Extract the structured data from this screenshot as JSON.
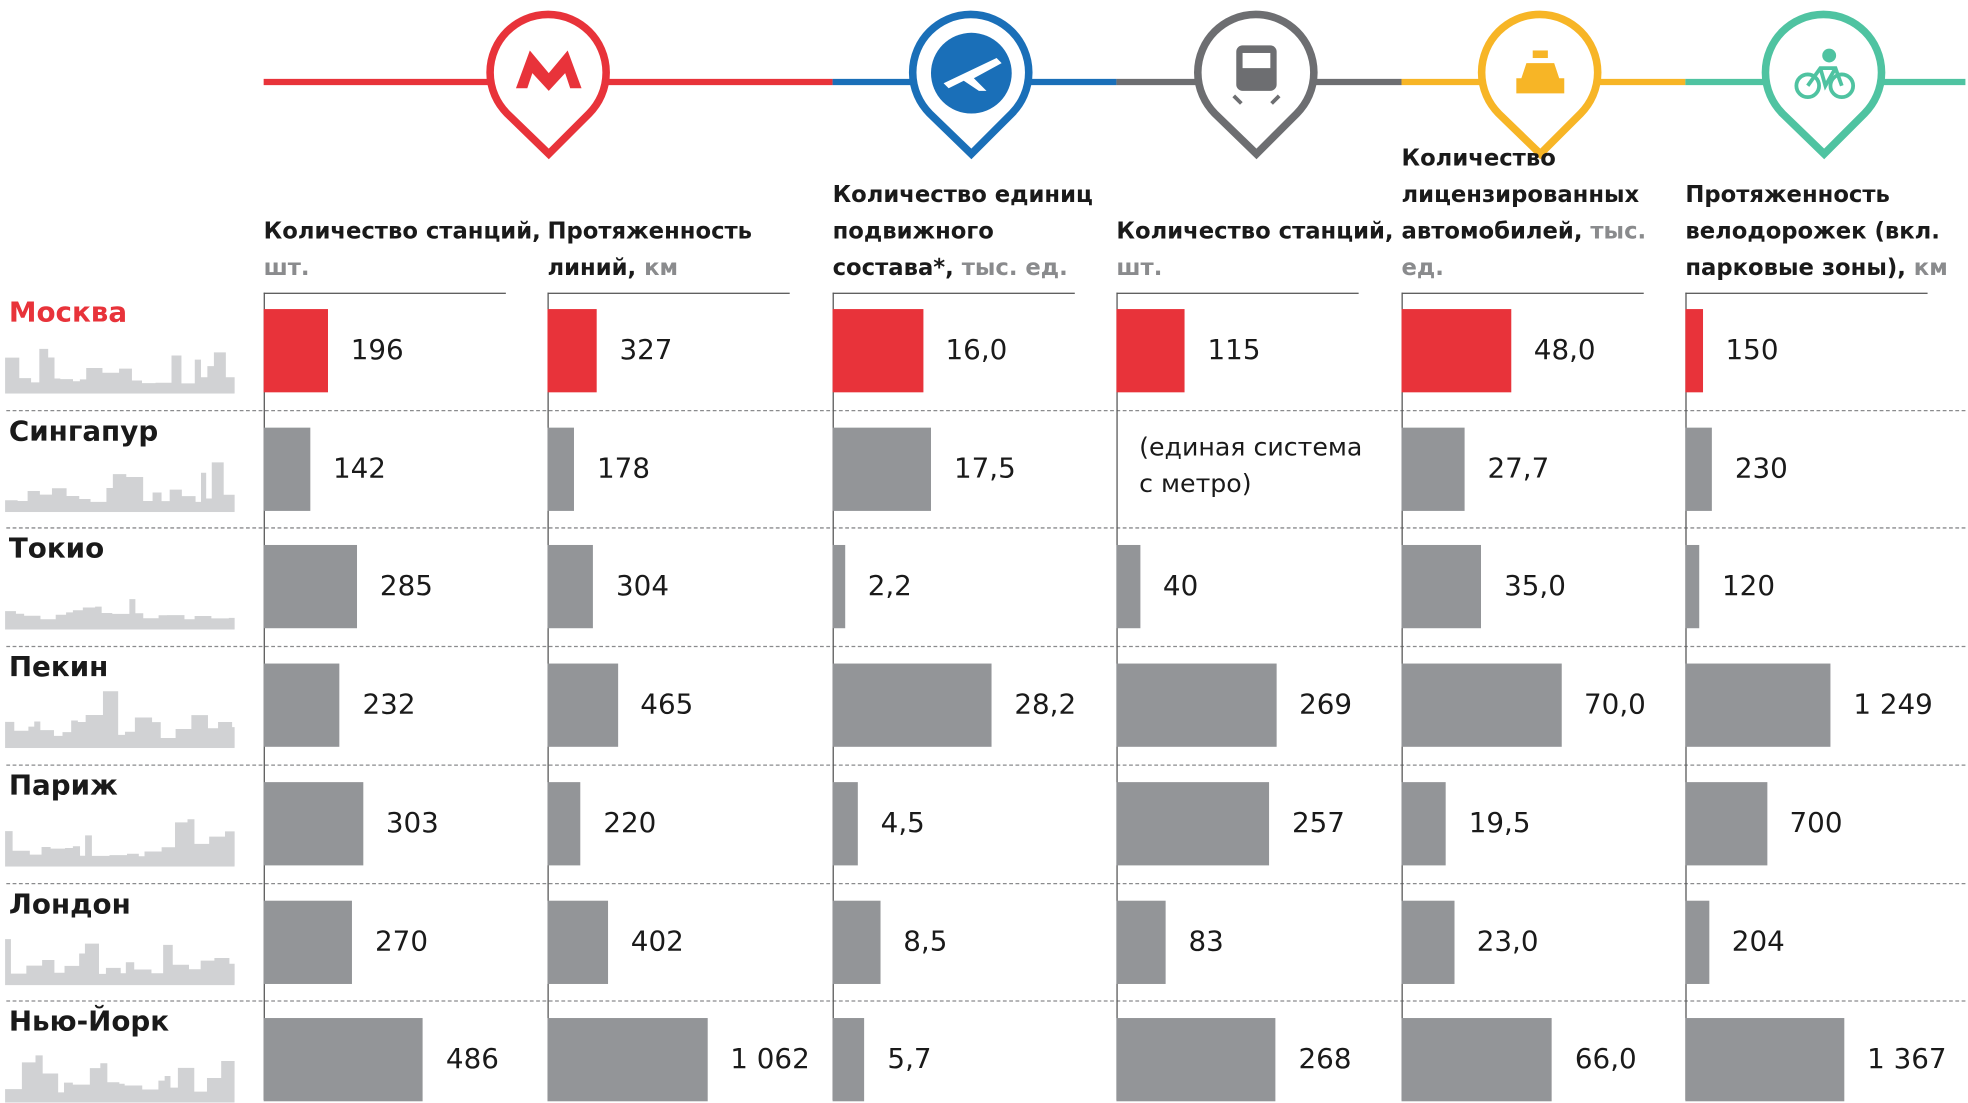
{
  "categories": [
    "Москва",
    "Сингапур",
    "Токио",
    "Пекин",
    "Париж",
    "Лондон",
    "Нью-Йорк"
  ],
  "chart_data": [
    {
      "type": "bar",
      "orientation": "horizontal",
      "title": "Количество станций,",
      "unit": "шт.",
      "values": [
        196,
        142,
        285,
        232,
        303,
        270,
        486
      ],
      "colors": [
        "#e8333a",
        "#939598",
        "#939598",
        "#939598",
        "#939598",
        "#939598",
        "#939598"
      ],
      "xlim": [
        0,
        730
      ]
    },
    {
      "type": "bar",
      "orientation": "horizontal",
      "title": "Протяженность линий,",
      "unit": "км",
      "values": [
        327,
        178,
        304,
        465,
        220,
        402,
        1062
      ],
      "value_labels": [
        "327",
        "178",
        "304",
        "465",
        "220",
        "402",
        "1 062"
      ],
      "colors": [
        "#e8333a",
        "#939598",
        "#939598",
        "#939598",
        "#939598",
        "#939598",
        "#939598"
      ],
      "xlim": [
        0,
        1590
      ]
    },
    {
      "type": "bar",
      "orientation": "horizontal",
      "title": "Количество единиц подвижного состава*,",
      "unit": "тыс. ед.",
      "values": [
        16.0,
        17.5,
        2.2,
        28.2,
        4.5,
        8.5,
        5.7
      ],
      "value_labels": [
        "16,0",
        "17,5",
        "2,2",
        "28,2",
        "4,5",
        "8,5",
        "5,7"
      ],
      "colors": [
        "#e8333a",
        "#939598",
        "#939598",
        "#939598",
        "#939598",
        "#939598",
        "#939598"
      ],
      "xlim": [
        0,
        42.5
      ]
    },
    {
      "type": "bar",
      "orientation": "horizontal",
      "title": "Количество станций,",
      "unit": "шт.",
      "values": [
        115,
        null,
        40,
        269,
        257,
        83,
        268
      ],
      "annotation": [
        "(единая система",
        "с метро)"
      ],
      "colors": [
        "#e8333a",
        "#939598",
        "#939598",
        "#939598",
        "#939598",
        "#939598",
        "#939598"
      ],
      "xlim": [
        0,
        403
      ]
    },
    {
      "type": "bar",
      "orientation": "horizontal",
      "title": "Количество лицензированных автомобилей,",
      "unit": "тыс. ед.",
      "values": [
        48.0,
        27.7,
        35.0,
        70.0,
        19.5,
        23.0,
        66.0
      ],
      "value_labels": [
        "48,0",
        "27,7",
        "35,0",
        "70,0",
        "19,5",
        "23,0",
        "66,0"
      ],
      "colors": [
        "#e8333a",
        "#939598",
        "#939598",
        "#939598",
        "#939598",
        "#939598",
        "#939598"
      ],
      "xlim": [
        0,
        105
      ]
    },
    {
      "type": "bar",
      "orientation": "horizontal",
      "title": "Протяженность велодорожек (вкл. парковые зоны),",
      "unit": "км",
      "values": [
        150,
        230,
        120,
        1249,
        700,
        204,
        1367
      ],
      "value_labels": [
        "150",
        "230",
        "120",
        "1 249",
        "700",
        "204",
        "1 367"
      ],
      "colors": [
        "#e8333a",
        "#939598",
        "#939598",
        "#939598",
        "#939598",
        "#939598",
        "#939598"
      ],
      "xlim": [
        0,
        2060
      ]
    }
  ]
}
